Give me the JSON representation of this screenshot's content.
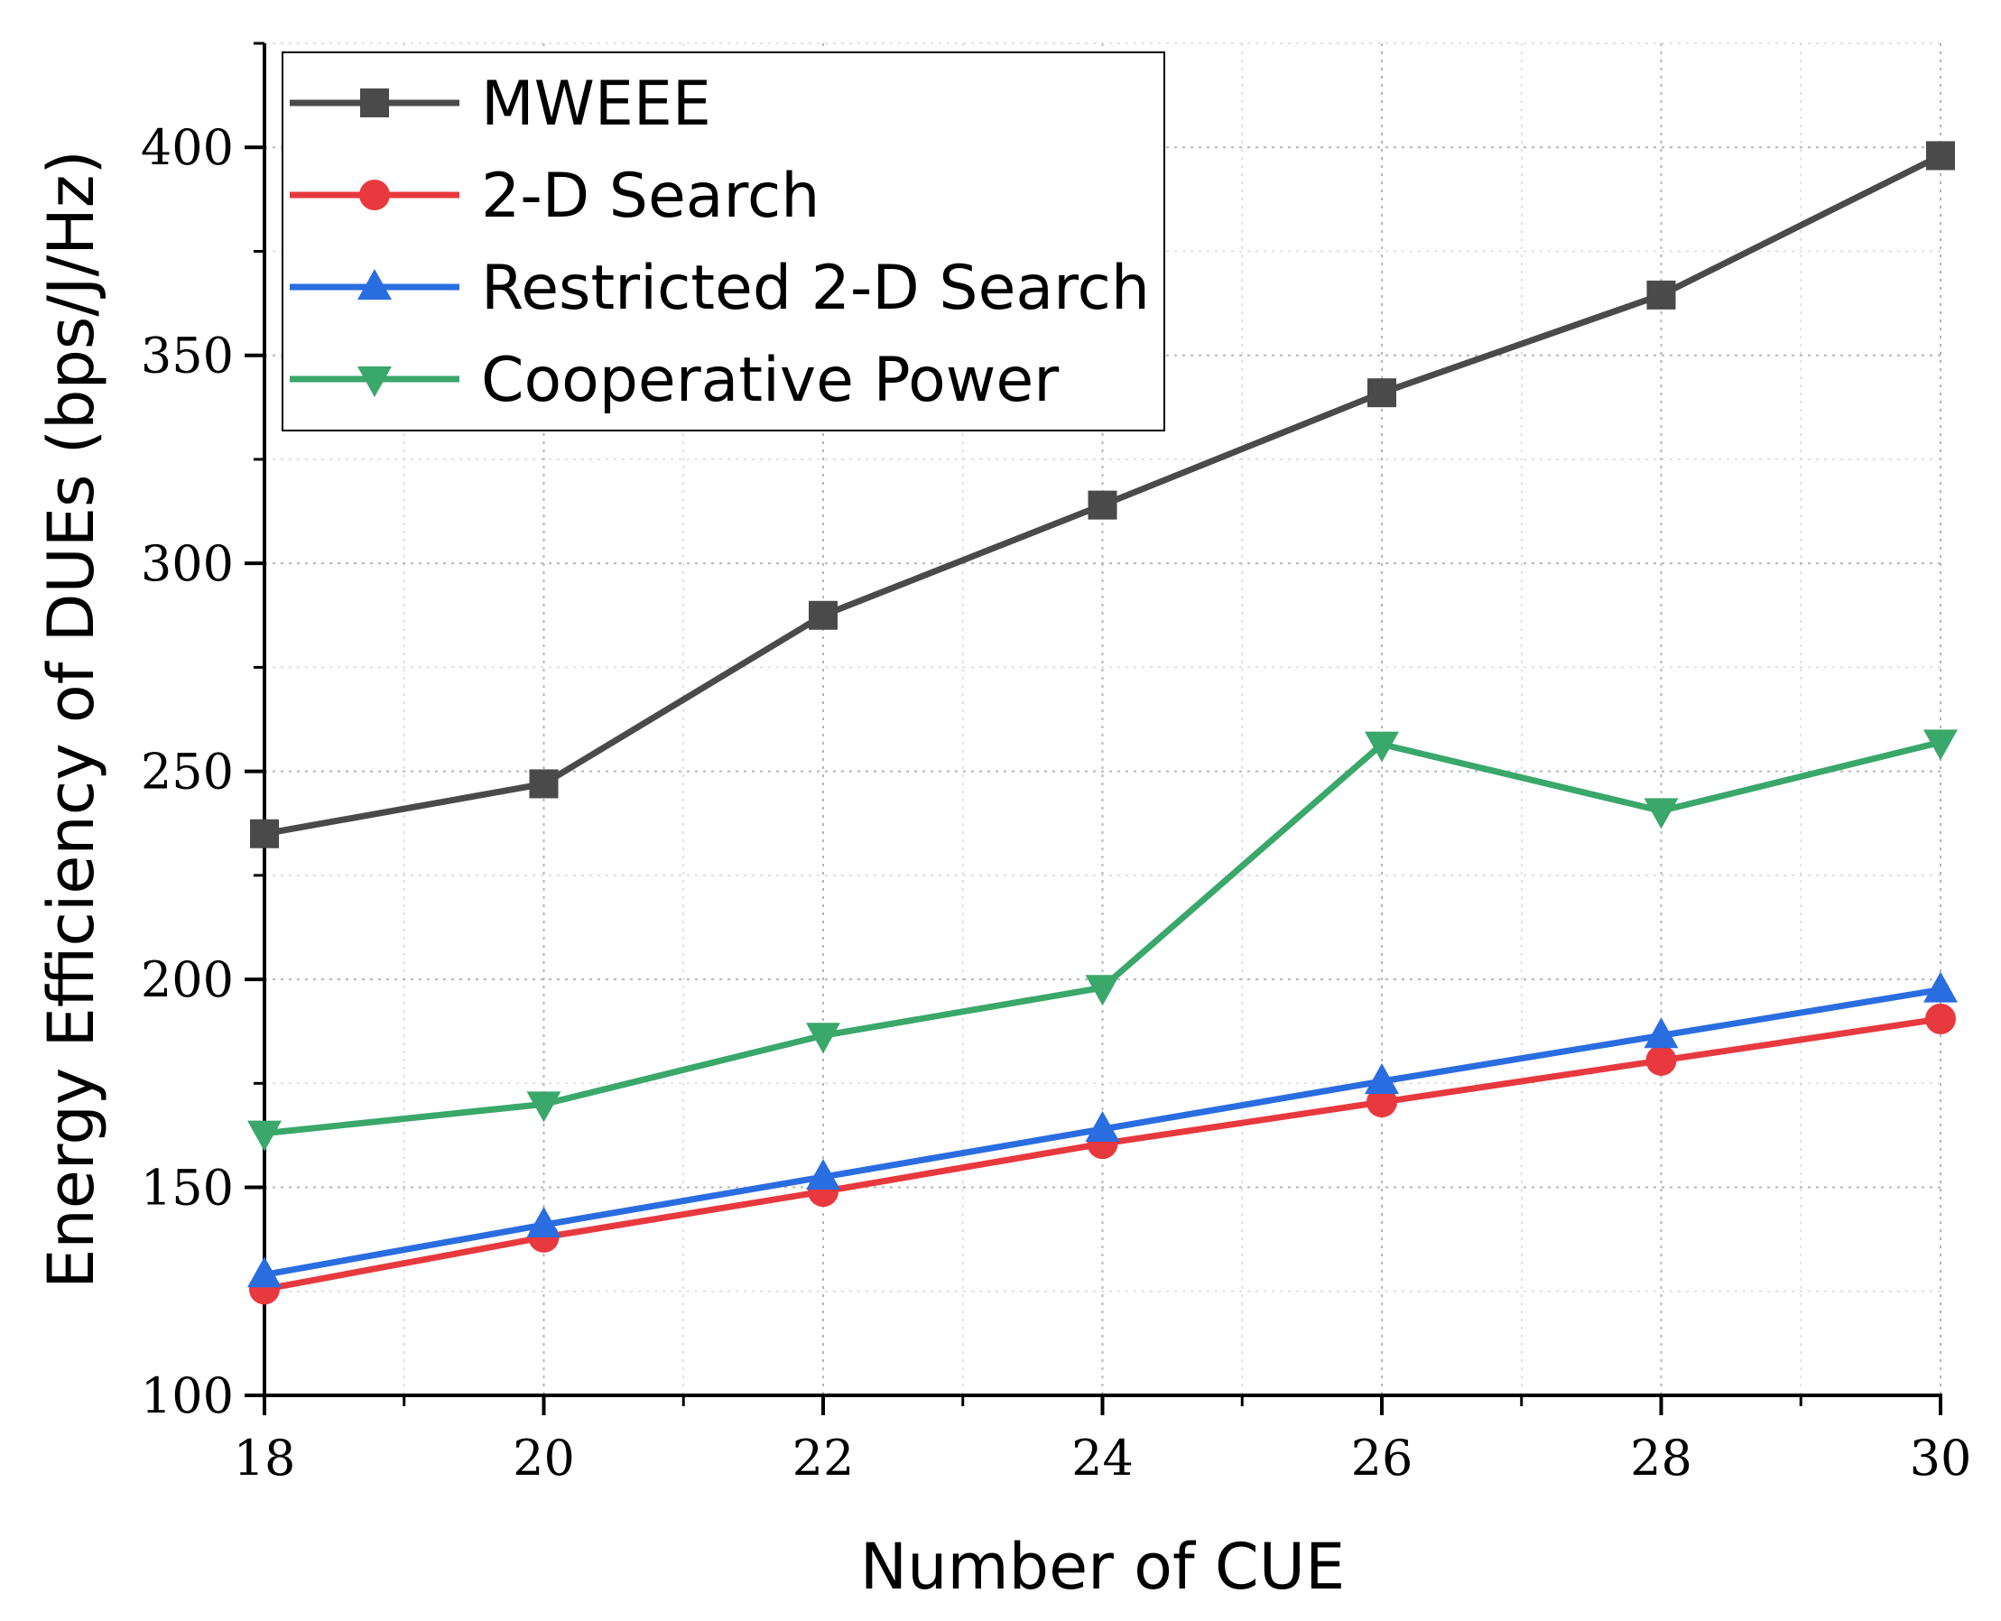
{
  "chart_data": {
    "type": "line",
    "title": "",
    "xlabel": "Number of CUE",
    "ylabel": "Energy Efficiency of DUEs (bps/J/Hz)",
    "xlim": [
      18,
      30
    ],
    "ylim": [
      100,
      425
    ],
    "xticks": [
      18,
      20,
      22,
      24,
      26,
      28,
      30
    ],
    "yticks": [
      100,
      150,
      200,
      250,
      300,
      350,
      400
    ],
    "x": [
      18,
      20,
      22,
      24,
      26,
      28,
      30
    ],
    "grid": true,
    "legend_position": "top-left",
    "series": [
      {
        "name": "MWEEE",
        "marker": "square",
        "color": "#4a4a4a",
        "values": [
          235,
          247,
          287.5,
          314,
          341,
          364.5,
          398
        ]
      },
      {
        "name": "2-D Search",
        "marker": "circle",
        "color": "#e8393e",
        "values": [
          125.5,
          138,
          149,
          160.5,
          170.5,
          180.5,
          190.5
        ]
      },
      {
        "name": "Restricted 2-D Search",
        "marker": "triangle-up",
        "color": "#2a6de0",
        "values": [
          129,
          141,
          152.5,
          164,
          175.5,
          186.5,
          197.5
        ]
      },
      {
        "name": "Cooperative Power",
        "marker": "triangle-down",
        "color": "#3aa76b",
        "values": [
          163,
          170,
          186.5,
          198,
          256.5,
          240.5,
          257
        ]
      }
    ]
  }
}
